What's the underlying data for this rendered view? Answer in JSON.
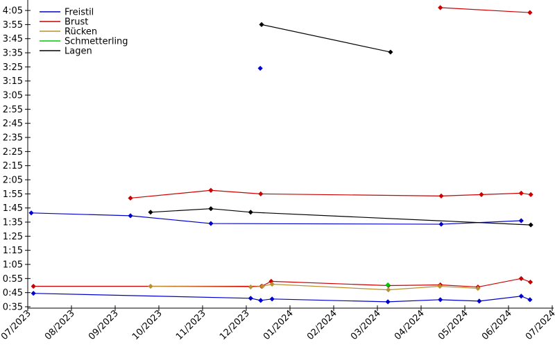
{
  "chart_data": {
    "type": "line",
    "title": "",
    "xlabel": "",
    "ylabel": "",
    "x_unit": "months offset from 07/2023",
    "y_unit": "time m:ss (stored as seconds)",
    "x_tick_labels": [
      "07/2023",
      "08/2023",
      "09/2023",
      "10/2023",
      "11/2023",
      "12/2023",
      "01/2024",
      "02/2024",
      "03/2024",
      "04/2024",
      "05/2024",
      "06/2024",
      "07/2024"
    ],
    "y_tick_labels": [
      "0:35",
      "0:45",
      "0:55",
      "1:05",
      "1:15",
      "1:25",
      "1:35",
      "1:45",
      "1:55",
      "2:05",
      "2:15",
      "2:25",
      "2:35",
      "2:45",
      "2:55",
      "3:05",
      "3:15",
      "3:25",
      "3:35",
      "3:45",
      "3:55",
      "4:05"
    ],
    "y_range_seconds": [
      35,
      245
    ],
    "x_range_months": [
      0,
      12
    ],
    "grid": false,
    "legend": {
      "position": "upper-left",
      "entries": [
        "Freistil",
        "Brust",
        "Rücken",
        "Schmetterling",
        "Lagen"
      ]
    },
    "marker_style": "diamond",
    "series": [
      {
        "name": "Freistil",
        "color": "#0000cc",
        "segments": [
          [
            [
              0.08,
              101.5
            ],
            [
              2.35,
              99.5
            ],
            [
              4.19,
              94
            ],
            [
              9.46,
              93.5
            ],
            [
              11.29,
              96
            ]
          ],
          [
            [
              5.32,
              204
            ]
          ],
          [
            [
              0.13,
              44.5
            ],
            [
              5.1,
              41
            ],
            [
              5.33,
              39.5
            ],
            [
              5.59,
              40.5
            ],
            [
              8.24,
              38.5
            ],
            [
              9.44,
              40
            ],
            [
              10.33,
              39
            ],
            [
              11.29,
              42.5
            ],
            [
              11.49,
              40
            ]
          ]
        ]
      },
      {
        "name": "Brust",
        "color": "#cc0000",
        "segments": [
          [
            [
              9.44,
              247
            ],
            [
              11.49,
              243.5
            ]
          ],
          [
            [
              2.35,
              112
            ],
            [
              4.19,
              117.5
            ],
            [
              5.33,
              115
            ],
            [
              9.46,
              113.5
            ],
            [
              10.38,
              114.5
            ],
            [
              11.29,
              115.5
            ],
            [
              11.51,
              114.5
            ]
          ],
          [
            [
              0.13,
              49.5
            ],
            [
              5.35,
              49.5
            ],
            [
              5.57,
              53
            ],
            [
              8.25,
              50
            ],
            [
              9.44,
              50.5
            ],
            [
              10.3,
              49
            ],
            [
              11.29,
              55
            ],
            [
              11.5,
              52.5
            ]
          ]
        ]
      },
      {
        "name": "Rücken",
        "color": "#b8912f",
        "segments": [
          [
            [
              2.81,
              49.5
            ],
            [
              5.1,
              49
            ],
            [
              5.37,
              49.5
            ],
            [
              5.59,
              51
            ],
            [
              8.25,
              47
            ],
            [
              9.43,
              49.5
            ],
            [
              10.3,
              48
            ]
          ]
        ]
      },
      {
        "name": "Schmetterling",
        "color": "#00cc00",
        "segments": [
          [
            [
              8.24,
              50.5
            ]
          ]
        ]
      },
      {
        "name": "Lagen",
        "color": "#000000",
        "segments": [
          [
            [
              5.35,
              235
            ],
            [
              8.3,
              215.5
            ]
          ],
          [
            [
              2.81,
              102
            ],
            [
              4.19,
              104.5
            ],
            [
              5.1,
              102
            ],
            [
              11.51,
              93
            ]
          ]
        ]
      }
    ]
  }
}
